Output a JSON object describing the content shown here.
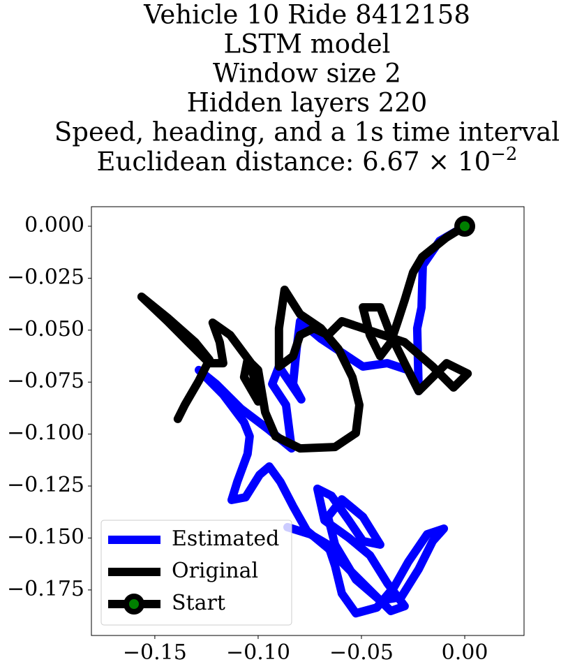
{
  "chart_data": {
    "type": "line",
    "title_lines": [
      "Vehicle 10 Ride 8412158",
      "LSTM model",
      "Window size 2",
      "Hidden layers 220",
      "Speed, heading, and a 1s time interval",
      "Euclidean distance: 6.67 × 10"
    ],
    "title_exponent": "−2",
    "xlim": [
      -0.1807,
      0.0287
    ],
    "ylim": [
      -0.1969,
      0.0094
    ],
    "xticks": [
      {
        "value": -0.15,
        "label": "−0.15"
      },
      {
        "value": -0.1,
        "label": "−0.10"
      },
      {
        "value": -0.05,
        "label": "−0.05"
      },
      {
        "value": 0,
        "label": "0.00"
      }
    ],
    "yticks": [
      {
        "value": 0,
        "label": "0.000"
      },
      {
        "value": -0.025,
        "label": "−0.025"
      },
      {
        "value": -0.05,
        "label": "−0.050"
      },
      {
        "value": -0.075,
        "label": "−0.075"
      },
      {
        "value": -0.1,
        "label": "−0.100"
      },
      {
        "value": -0.125,
        "label": "−0.125"
      },
      {
        "value": -0.15,
        "label": "−0.150"
      },
      {
        "value": -0.175,
        "label": "−0.175"
      }
    ],
    "legend": "lower left",
    "series": [
      {
        "name": "Estimated",
        "color": "#0000ff",
        "x": [
          0,
          -0.0122,
          -0.0203,
          -0.0209,
          -0.023,
          -0.0223,
          -0.0274,
          -0.0375,
          -0.0493,
          -0.0595,
          -0.0696,
          -0.0797,
          -0.0814,
          -0.0831,
          -0.0791,
          -0.0899,
          -0.0932,
          -0.0865,
          -0.0838,
          -0.0949,
          -0.1084,
          -0.1203,
          -0.1287,
          -0.1169,
          -0.1068,
          -0.1041,
          -0.1051,
          -0.1101,
          -0.1128,
          -0.1061,
          -0.0993,
          -0.0946,
          -0.0892,
          -0.0831,
          -0.0764,
          -0.0662,
          -0.0561,
          -0.0459,
          -0.0358,
          -0.0291,
          -0.0375,
          -0.0459,
          -0.0561,
          -0.0679,
          -0.0713,
          -0.0645,
          -0.0561,
          -0.0493,
          -0.0409,
          -0.0493,
          -0.0595,
          -0.0662,
          -0.0628,
          -0.0527,
          -0.0409,
          -0.0307,
          -0.0223,
          -0.0155,
          -0.0101,
          -0.0182,
          -0.0274,
          -0.0341,
          -0.0426,
          -0.0527,
          -0.0595,
          -0.0628,
          -0.0662,
          -0.0747,
          -0.0858
        ],
        "values": [
          0,
          -0.0071,
          -0.0188,
          -0.039,
          -0.0491,
          -0.0793,
          -0.0692,
          -0.0659,
          -0.0675,
          -0.0608,
          -0.0541,
          -0.0457,
          -0.0591,
          -0.0759,
          -0.0833,
          -0.0675,
          -0.0759,
          -0.086,
          -0.1069,
          -0.0978,
          -0.0877,
          -0.0759,
          -0.0692,
          -0.081,
          -0.0944,
          -0.1011,
          -0.1095,
          -0.123,
          -0.1317,
          -0.1304,
          -0.1196,
          -0.1156,
          -0.123,
          -0.1347,
          -0.1465,
          -0.1549,
          -0.165,
          -0.1751,
          -0.1851,
          -0.1828,
          -0.1717,
          -0.1583,
          -0.1499,
          -0.1415,
          -0.1263,
          -0.1297,
          -0.1415,
          -0.1515,
          -0.1532,
          -0.1398,
          -0.1314,
          -0.1398,
          -0.1532,
          -0.17,
          -0.1801,
          -0.1784,
          -0.165,
          -0.1515,
          -0.1455,
          -0.1482,
          -0.1616,
          -0.1734,
          -0.1835,
          -0.1862,
          -0.1767,
          -0.1633,
          -0.1532,
          -0.1482,
          -0.1448
        ]
      },
      {
        "name": "Original",
        "color": "#000000",
        "x": [
          0,
          -0.0088,
          -0.0206,
          -0.025,
          -0.0291,
          -0.0324,
          -0.0358,
          -0.0409,
          -0.0459,
          -0.0493,
          -0.0409,
          -0.0358,
          -0.0291,
          -0.0223,
          -0.0088,
          0.0014,
          -0.0054,
          -0.0155,
          -0.0291,
          -0.0493,
          -0.0595,
          -0.0662,
          -0.073,
          -0.0797,
          -0.0831,
          -0.0899,
          -0.0899,
          -0.0872,
          -0.0797,
          -0.0696,
          -0.0611,
          -0.0544,
          -0.051,
          -0.0527,
          -0.0628,
          -0.0797,
          -0.0916,
          -0.0966,
          -0.1,
          -0.1051,
          -0.1068,
          -0.1,
          -0.1034,
          -0.1135,
          -0.122,
          -0.1186,
          -0.1169,
          -0.1236,
          -0.1338,
          -0.1439,
          -0.1564,
          -0.1439,
          -0.1304,
          -0.1236,
          -0.1287,
          -0.1355,
          -0.1389
        ],
        "values": [
          0,
          -0.0054,
          -0.0148,
          -0.0222,
          -0.0356,
          -0.0457,
          -0.0558,
          -0.0625,
          -0.0524,
          -0.039,
          -0.039,
          -0.0524,
          -0.0659,
          -0.0793,
          -0.0659,
          -0.0709,
          -0.0776,
          -0.0675,
          -0.0558,
          -0.0491,
          -0.0457,
          -0.0524,
          -0.0491,
          -0.0524,
          -0.0625,
          -0.0675,
          -0.0491,
          -0.0306,
          -0.0423,
          -0.0491,
          -0.0591,
          -0.0726,
          -0.086,
          -0.0995,
          -0.1062,
          -0.1069,
          -0.1011,
          -0.0894,
          -0.0692,
          -0.0642,
          -0.0726,
          -0.0843,
          -0.0659,
          -0.0524,
          -0.0464,
          -0.0558,
          -0.0659,
          -0.0659,
          -0.0558,
          -0.0457,
          -0.0339,
          -0.044,
          -0.0558,
          -0.0642,
          -0.0743,
          -0.086,
          -0.0927
        ]
      },
      {
        "name": "Start",
        "color": "#000000",
        "marker_face": "#008000",
        "x": [
          0
        ],
        "values": [
          0
        ]
      }
    ]
  }
}
